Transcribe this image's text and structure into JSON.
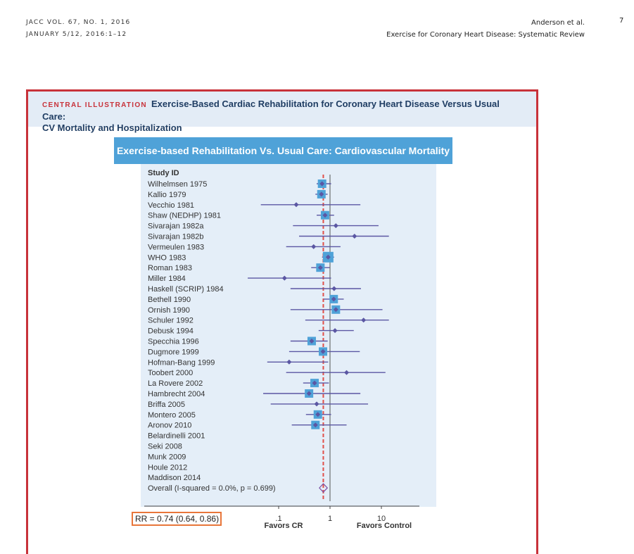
{
  "header": {
    "journal_line1": "JACC VOL. 67, NO. 1, 2016",
    "journal_line2": "JANUARY 5/12, 2016:1–12",
    "authors": "Anderson et al.",
    "running_title": "Exercise for Coronary Heart Disease: Systematic Review",
    "page_number": "7"
  },
  "illustration": {
    "label": "CENTRAL ILLUSTRATION",
    "title_line1": "Exercise-Based Cardiac Rehabilitation for Coronary Heart Disease Versus Usual Care:",
    "title_line2": "CV Mortality and Hospitalization"
  },
  "chart_data": {
    "type": "forest",
    "title": "Exercise-based Rehabilitation Vs. Usual Care: Cardiovascular Mortality",
    "column_header": "Study ID",
    "x_scale": "log",
    "xlim": [
      0.03,
      14
    ],
    "null_line": 1,
    "pooled_line": 0.74,
    "ticks": [
      {
        "value": 0.1,
        "label": ".1"
      },
      {
        "value": 1,
        "label": "1"
      },
      {
        "value": 10,
        "label": "10"
      }
    ],
    "favors_left": "Favors CR",
    "favors_right": "Favors Control",
    "studies": [
      {
        "label": "Wilhelmsen 1975",
        "rr": 0.7,
        "lo": 0.55,
        "hi": 1.05,
        "weight": 2
      },
      {
        "label": "Kallio 1979",
        "rr": 0.68,
        "lo": 0.52,
        "hi": 0.9,
        "weight": 2
      },
      {
        "label": "Vecchio 1981",
        "rr": 0.22,
        "lo": 0.045,
        "hi": 3.9,
        "weight": 0
      },
      {
        "label": "Shaw (NEDHP) 1981",
        "rr": 0.8,
        "lo": 0.55,
        "hi": 1.2,
        "weight": 2
      },
      {
        "label": "Sivarajan 1982a",
        "rr": 1.3,
        "lo": 0.19,
        "hi": 8.8,
        "weight": 0
      },
      {
        "label": "Sivarajan 1982b",
        "rr": 3.0,
        "lo": 0.25,
        "hi": 14,
        "weight": 0
      },
      {
        "label": "Vermeulen 1983",
        "rr": 0.48,
        "lo": 0.14,
        "hi": 1.6,
        "weight": 0
      },
      {
        "label": "WHO 1983",
        "rr": 0.92,
        "lo": 0.7,
        "hi": 1.2,
        "weight": 3
      },
      {
        "label": "Roman 1983",
        "rr": 0.65,
        "lo": 0.43,
        "hi": 0.98,
        "weight": 2
      },
      {
        "label": "Miller 1984",
        "rr": 0.13,
        "lo": 0.025,
        "hi": 1.05,
        "weight": 0
      },
      {
        "label": "Haskell (SCRIP) 1984",
        "rr": 1.2,
        "lo": 0.17,
        "hi": 4.0,
        "weight": 0
      },
      {
        "label": "Bethell 1990",
        "rr": 1.18,
        "lo": 0.75,
        "hi": 1.85,
        "weight": 2
      },
      {
        "label": "Ornish 1990",
        "rr": 1.3,
        "lo": 0.17,
        "hi": 10.5,
        "weight": 2
      },
      {
        "label": "Schuler 1992",
        "rr": 4.5,
        "lo": 0.33,
        "hi": 14,
        "weight": 0
      },
      {
        "label": "Debusk 1994",
        "rr": 1.25,
        "lo": 0.6,
        "hi": 2.9,
        "weight": 0
      },
      {
        "label": "Specchia 1996",
        "rr": 0.44,
        "lo": 0.17,
        "hi": 0.9,
        "weight": 2
      },
      {
        "label": "Dugmore 1999",
        "rr": 0.73,
        "lo": 0.16,
        "hi": 3.8,
        "weight": 2
      },
      {
        "label": "Hofman-Bang 1999",
        "rr": 0.16,
        "lo": 0.06,
        "hi": 0.92,
        "weight": 0
      },
      {
        "label": "Toobert 2000",
        "rr": 2.1,
        "lo": 0.14,
        "hi": 12,
        "weight": 0
      },
      {
        "label": "La Rovere 2002",
        "rr": 0.5,
        "lo": 0.3,
        "hi": 0.95,
        "weight": 2
      },
      {
        "label": "Hambrecht 2004",
        "rr": 0.39,
        "lo": 0.05,
        "hi": 3.9,
        "weight": 2
      },
      {
        "label": "Briffa 2005",
        "rr": 0.55,
        "lo": 0.07,
        "hi": 5.5,
        "weight": 0
      },
      {
        "label": "Montero 2005",
        "rr": 0.58,
        "lo": 0.34,
        "hi": 1.05,
        "weight": 2
      },
      {
        "label": "Aronov 2010",
        "rr": 0.52,
        "lo": 0.18,
        "hi": 2.1,
        "weight": 2
      },
      {
        "label": "Belardinelli 2001"
      },
      {
        "label": "Seki 2008"
      },
      {
        "label": "Munk 2009"
      },
      {
        "label": "Houle 2012"
      },
      {
        "label": "Maddison 2014"
      }
    ],
    "overall": {
      "label": "Overall (I-squared = 0.0%, p = 0.699)",
      "rr": 0.74,
      "lo": 0.64,
      "hi": 0.86
    },
    "summary_text": "RR = 0.74 (0.64, 0.86)"
  },
  "colors": {
    "frame": "#c8323a",
    "header_bar": "#4fa2d8",
    "panel": "#e4eef8",
    "line": "#5b57a3",
    "box": "#4fa2d8",
    "pooled_line": "#e0504a",
    "rr_box": "#e8763a"
  }
}
